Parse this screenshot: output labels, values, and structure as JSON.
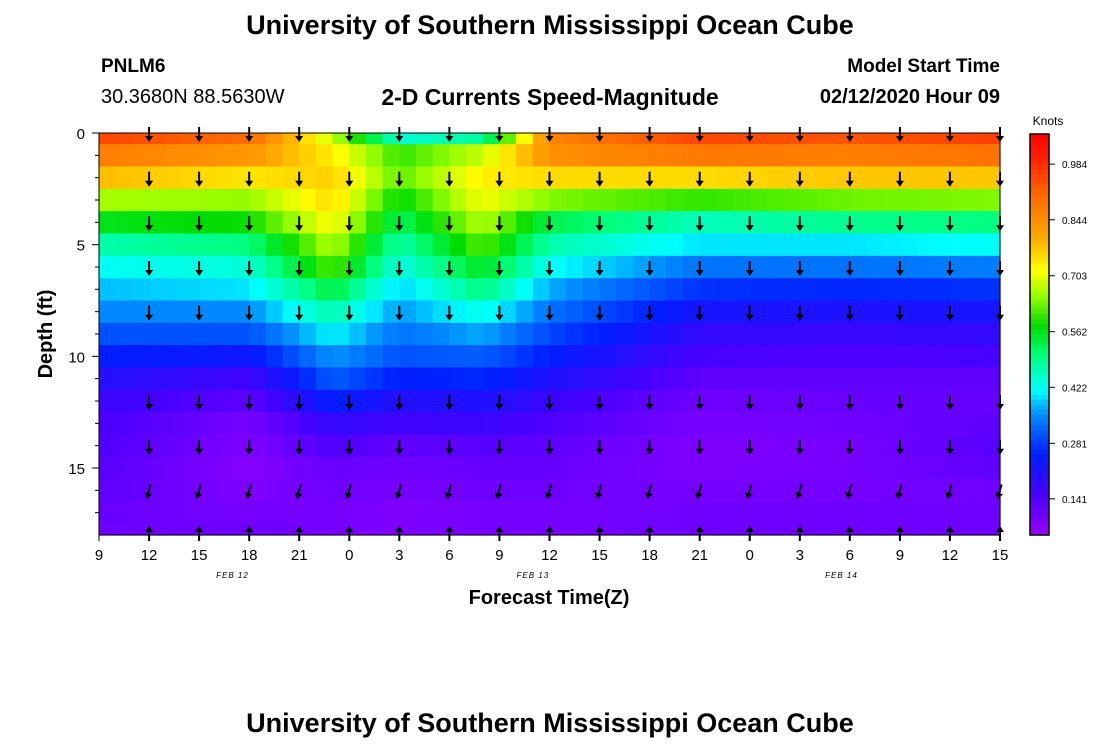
{
  "header": {
    "title": "University of Southern Mississippi Ocean Cube",
    "station_id": "PNLM6",
    "station_coords": "30.3680N 88.5630W",
    "subtitle": "2-D Currents Speed-Magnitude",
    "model_start_label": "Model Start Time",
    "model_start_value": "02/12/2020 Hour 09"
  },
  "footer": {
    "title": "University of Southern Mississippi Ocean Cube"
  },
  "chart_data": {
    "type": "heatmap",
    "title": "2-D Currents Speed-Magnitude",
    "xlabel": "Forecast Time(Z)",
    "ylabel": "Depth (ft)",
    "x_hours": [
      9,
      12,
      15,
      18,
      21,
      24,
      27,
      30,
      33,
      36,
      39,
      42,
      45,
      48,
      51,
      54,
      57,
      60,
      63
    ],
    "x_tick_labels": [
      "9",
      "12",
      "15",
      "18",
      "21",
      "0",
      "3",
      "6",
      "9",
      "12",
      "15",
      "18",
      "21",
      "0",
      "3",
      "6",
      "9",
      "12",
      "15"
    ],
    "date_labels": [
      {
        "text": "FEB 12",
        "hour": 17
      },
      {
        "text": "FEB 13",
        "hour": 35
      },
      {
        "text": "FEB 14",
        "hour": 53.5
      }
    ],
    "xlim": [
      9,
      63
    ],
    "y_ticks": [
      0,
      5,
      10,
      15
    ],
    "y_minor_ticks": [
      1,
      2,
      3,
      4,
      6,
      7,
      8,
      9,
      11,
      12,
      13,
      14,
      16,
      17
    ],
    "ylim": [
      0,
      18
    ],
    "depth_rows": [
      0,
      1,
      2,
      3,
      4,
      5,
      6,
      7,
      8,
      9,
      10,
      11,
      12,
      13,
      14,
      15,
      16,
      17,
      18
    ],
    "arrow_depths": [
      0,
      2,
      4,
      6,
      8,
      12,
      14,
      16,
      18
    ],
    "colorbar": {
      "label": "Knots",
      "ticks": [
        0.984,
        0.844,
        0.703,
        0.562,
        0.422,
        0.281,
        0.141
      ],
      "min": 0.05,
      "max": 1.06
    },
    "speed_profiles": [
      {
        "hour": 9,
        "values": [
          0.95,
          0.87,
          0.78,
          0.66,
          0.56,
          0.47,
          0.42,
          0.38,
          0.35,
          0.3,
          0.25,
          0.2,
          0.17,
          0.15,
          0.14,
          0.13,
          0.12,
          0.11,
          0.1
        ]
      },
      {
        "hour": 18,
        "values": [
          0.9,
          0.83,
          0.74,
          0.65,
          0.58,
          0.5,
          0.44,
          0.4,
          0.35,
          0.3,
          0.23,
          0.16,
          0.12,
          0.09,
          0.08,
          0.07,
          0.08,
          0.09,
          0.1
        ]
      },
      {
        "hour": 23,
        "values": [
          0.68,
          0.73,
          0.76,
          0.75,
          0.72,
          0.67,
          0.62,
          0.54,
          0.47,
          0.41,
          0.36,
          0.31,
          0.25,
          0.18,
          0.14,
          0.11,
          0.1,
          0.09,
          0.09
        ]
      },
      {
        "hour": 27,
        "values": [
          0.44,
          0.6,
          0.62,
          0.57,
          0.52,
          0.47,
          0.43,
          0.39,
          0.36,
          0.33,
          0.3,
          0.25,
          0.2,
          0.16,
          0.12,
          0.1,
          0.09,
          0.08,
          0.08
        ]
      },
      {
        "hour": 32,
        "values": [
          0.48,
          0.68,
          0.73,
          0.71,
          0.67,
          0.62,
          0.56,
          0.5,
          0.43,
          0.37,
          0.31,
          0.26,
          0.21,
          0.17,
          0.13,
          0.11,
          0.1,
          0.09,
          0.09
        ]
      },
      {
        "hour": 36,
        "values": [
          0.86,
          0.84,
          0.75,
          0.64,
          0.53,
          0.47,
          0.42,
          0.37,
          0.33,
          0.29,
          0.25,
          0.21,
          0.17,
          0.14,
          0.12,
          0.11,
          0.1,
          0.09,
          0.09
        ]
      },
      {
        "hour": 45,
        "values": [
          0.95,
          0.88,
          0.75,
          0.6,
          0.46,
          0.4,
          0.33,
          0.27,
          0.22,
          0.18,
          0.15,
          0.12,
          0.1,
          0.09,
          0.08,
          0.08,
          0.09,
          0.1,
          0.1
        ]
      },
      {
        "hour": 54,
        "values": [
          0.93,
          0.87,
          0.77,
          0.63,
          0.49,
          0.4,
          0.33,
          0.26,
          0.21,
          0.17,
          0.14,
          0.12,
          0.11,
          0.1,
          0.09,
          0.09,
          0.09,
          0.1,
          0.1
        ]
      },
      {
        "hour": 63,
        "values": [
          0.96,
          0.89,
          0.77,
          0.64,
          0.5,
          0.42,
          0.34,
          0.27,
          0.22,
          0.18,
          0.15,
          0.12,
          0.11,
          0.12,
          0.13,
          0.12,
          0.1,
          0.1,
          0.1
        ]
      }
    ],
    "arrow_directions_deg": [
      {
        "depth": 0,
        "deg": 180
      },
      {
        "depth": 16,
        "deg": 195
      },
      {
        "depth": 18,
        "deg": 0
      }
    ]
  }
}
